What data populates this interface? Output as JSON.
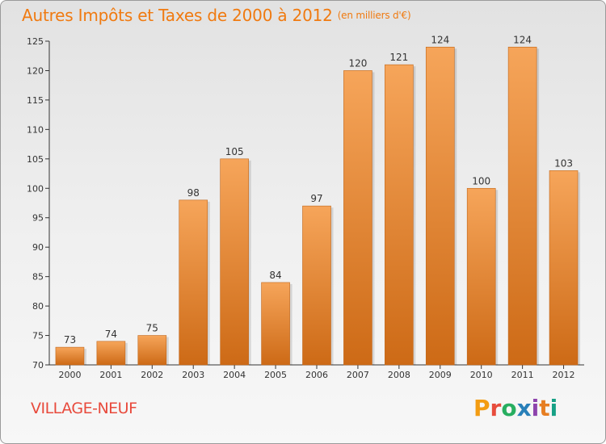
{
  "header": {
    "title": "Autres Impôts et Taxes de 2000 à 2012",
    "unit": "(en milliers d'€)"
  },
  "footer": {
    "commune": "VILLAGE-NEUF",
    "logo_text": "Proxiti",
    "logo_colors": [
      "#f39c12",
      "#e74c3c",
      "#27ae60",
      "#2980b9",
      "#8e44ad",
      "#e67e22",
      "#16a085"
    ]
  },
  "colors": {
    "bar_top": "#f6a55a",
    "bar_bottom": "#cd6a16",
    "title": "#f07a10",
    "commune": "#e84a3c"
  },
  "chart_data": {
    "type": "bar",
    "categories": [
      "2000",
      "2001",
      "2002",
      "2003",
      "2004",
      "2005",
      "2006",
      "2007",
      "2008",
      "2009",
      "2010",
      "2011",
      "2012"
    ],
    "values": [
      73,
      74,
      75,
      98,
      105,
      84,
      97,
      120,
      121,
      124,
      100,
      124,
      103
    ],
    "ylim": [
      70,
      125
    ],
    "yticks": [
      70,
      75,
      80,
      85,
      90,
      95,
      100,
      105,
      110,
      115,
      120,
      125
    ],
    "grid": false,
    "legend": "none"
  }
}
